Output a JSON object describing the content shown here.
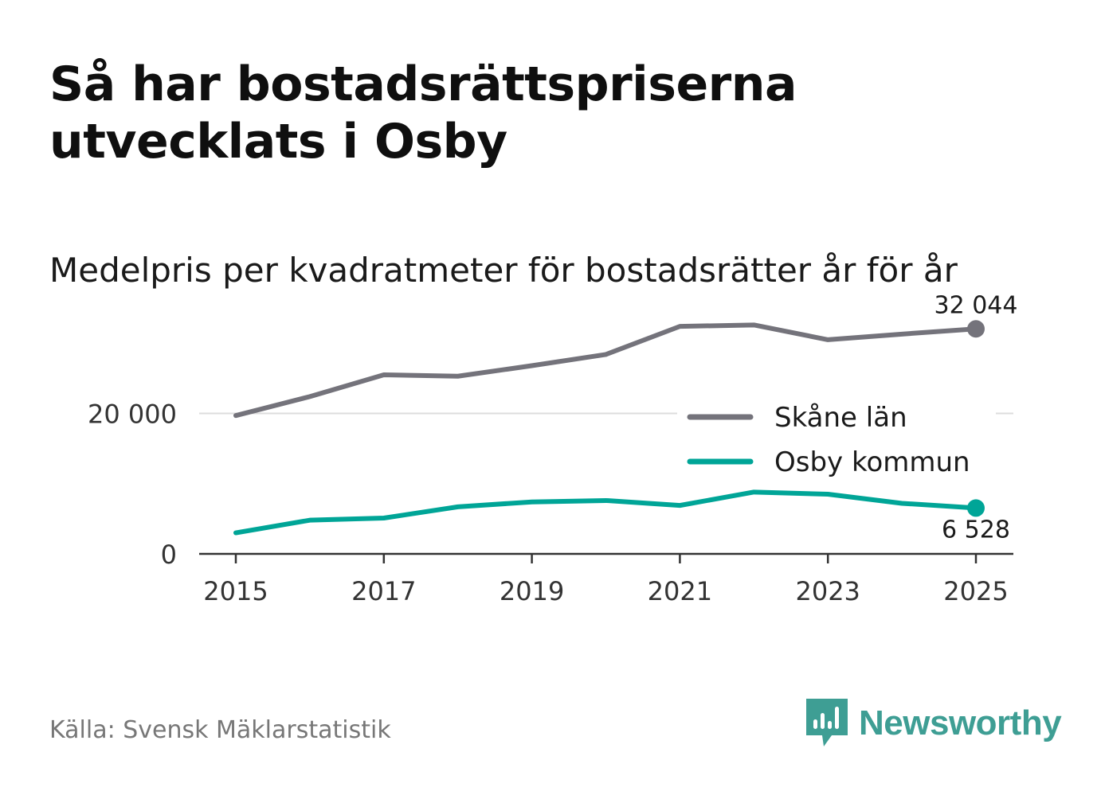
{
  "title": "Så har bostadsrättspriserna utvecklats i Osby",
  "subtitle": "Medelpris per kvadratmeter för bostadsrätter år för år",
  "source": "Källa: Svensk Mäklarstatistik",
  "brand": {
    "name": "Newsworthy",
    "color": "#3e9e94",
    "icon": "newsworthy-logo-icon"
  },
  "chart_data": {
    "type": "line",
    "title": "Medelpris per kvadratmeter för bostadsrätter år för år",
    "xlabel": "",
    "ylabel": "",
    "x": [
      2015,
      2016,
      2017,
      2018,
      2019,
      2020,
      2021,
      2022,
      2023,
      2024,
      2025
    ],
    "xticks": [
      "2015",
      "2017",
      "2019",
      "2021",
      "2023",
      "2025"
    ],
    "yticks": [
      {
        "value": 0,
        "label": "0"
      },
      {
        "value": 20000,
        "label": "20 000"
      }
    ],
    "ylim": [
      0,
      34000
    ],
    "grid": true,
    "legend_position": "right",
    "series": [
      {
        "name": "Skåne län",
        "color": "#74737b",
        "values": [
          19700,
          22400,
          25500,
          25300,
          26800,
          28400,
          32400,
          32600,
          30500,
          31300,
          32044
        ],
        "end_label": "32 044"
      },
      {
        "name": "Osby kommun",
        "color": "#00a597",
        "values": [
          3000,
          4800,
          5100,
          6700,
          7400,
          7600,
          6900,
          8800,
          8500,
          7200,
          6528
        ],
        "end_label": "6 528"
      }
    ]
  }
}
